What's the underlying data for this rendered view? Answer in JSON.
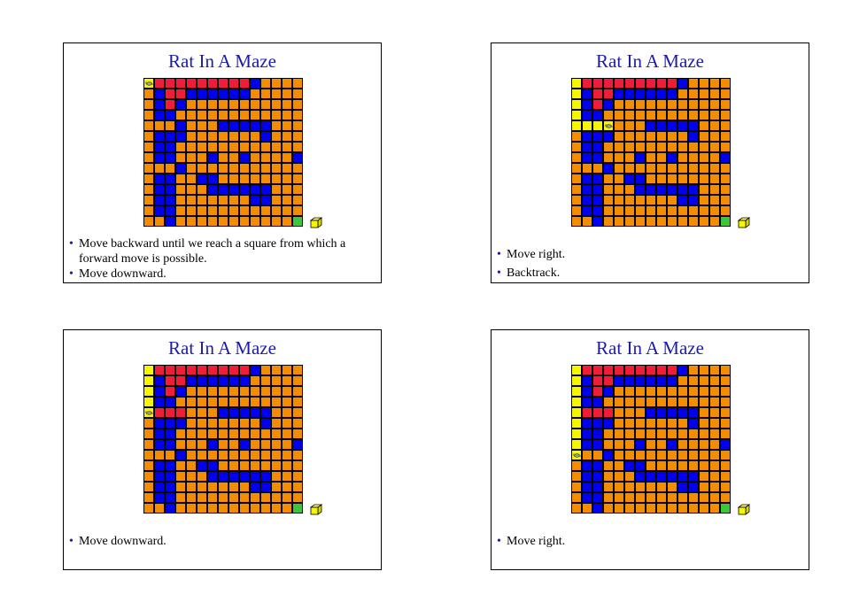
{
  "slides": [
    {
      "title": "Rat In A Maze",
      "bullets": [
        "Move backward until we reach a square from which a forward move is possible.",
        "Move downward."
      ],
      "rat_cell": [
        0,
        0
      ]
    },
    {
      "title": "Rat In A Maze",
      "bullets": [
        "Move right.",
        "Backtrack."
      ],
      "rat_cell": [
        4,
        3
      ]
    },
    {
      "title": "Rat In A Maze",
      "bullets": [
        "Move downward."
      ],
      "rat_cell": [
        4,
        0
      ]
    },
    {
      "title": "Rat In A Maze",
      "bullets": [
        "Move right."
      ],
      "rat_cell": [
        8,
        0
      ]
    }
  ],
  "legend_colors": {
    "open": "#f48c00",
    "wall": "#0000ee",
    "visited_dead": "#f01c38",
    "current_path": "#f6f600",
    "exit": "#3cc63c",
    "title": "#1c1ca8"
  },
  "mazes": [
    [
      [
        3,
        2,
        2,
        2,
        2,
        2,
        2,
        2,
        2,
        2,
        1,
        0,
        0,
        0,
        0
      ],
      [
        0,
        1,
        2,
        2,
        1,
        1,
        1,
        1,
        1,
        1,
        0,
        0,
        0,
        0,
        0
      ],
      [
        0,
        1,
        2,
        1,
        0,
        0,
        0,
        0,
        0,
        0,
        0,
        0,
        0,
        0,
        0
      ],
      [
        0,
        1,
        1,
        0,
        0,
        0,
        0,
        0,
        0,
        0,
        0,
        0,
        0,
        0,
        0
      ],
      [
        0,
        0,
        0,
        1,
        0,
        0,
        0,
        1,
        1,
        1,
        1,
        1,
        0,
        0,
        0
      ],
      [
        0,
        1,
        1,
        1,
        0,
        0,
        0,
        0,
        0,
        0,
        0,
        1,
        0,
        0,
        0
      ],
      [
        0,
        1,
        1,
        0,
        0,
        0,
        0,
        0,
        0,
        0,
        0,
        0,
        0,
        0,
        0
      ],
      [
        0,
        1,
        1,
        0,
        0,
        0,
        1,
        0,
        0,
        1,
        0,
        0,
        0,
        0,
        1
      ],
      [
        0,
        0,
        0,
        1,
        0,
        0,
        0,
        0,
        0,
        0,
        0,
        0,
        0,
        0,
        0
      ],
      [
        0,
        1,
        1,
        0,
        0,
        1,
        1,
        0,
        0,
        0,
        0,
        0,
        0,
        0,
        0
      ],
      [
        0,
        1,
        1,
        0,
        0,
        0,
        1,
        1,
        1,
        1,
        1,
        1,
        0,
        0,
        0
      ],
      [
        0,
        1,
        1,
        0,
        0,
        0,
        0,
        0,
        0,
        0,
        1,
        1,
        0,
        0,
        0
      ],
      [
        0,
        1,
        1,
        0,
        0,
        0,
        0,
        0,
        0,
        0,
        0,
        0,
        0,
        0,
        0
      ],
      [
        0,
        0,
        1,
        0,
        0,
        0,
        0,
        0,
        0,
        0,
        0,
        0,
        0,
        0,
        4
      ]
    ],
    [
      [
        3,
        2,
        2,
        2,
        2,
        2,
        2,
        2,
        2,
        2,
        1,
        0,
        0,
        0,
        0
      ],
      [
        3,
        1,
        2,
        2,
        1,
        1,
        1,
        1,
        1,
        1,
        0,
        0,
        0,
        0,
        0
      ],
      [
        3,
        1,
        2,
        1,
        0,
        0,
        0,
        0,
        0,
        0,
        0,
        0,
        0,
        0,
        0
      ],
      [
        3,
        1,
        1,
        0,
        0,
        0,
        0,
        0,
        0,
        0,
        0,
        0,
        0,
        0,
        0
      ],
      [
        3,
        3,
        3,
        3,
        0,
        0,
        0,
        1,
        1,
        1,
        1,
        1,
        0,
        0,
        0
      ],
      [
        0,
        1,
        1,
        1,
        0,
        0,
        0,
        0,
        0,
        0,
        0,
        1,
        0,
        0,
        0
      ],
      [
        0,
        1,
        1,
        0,
        0,
        0,
        0,
        0,
        0,
        0,
        0,
        0,
        0,
        0,
        0
      ],
      [
        0,
        1,
        1,
        0,
        0,
        0,
        1,
        0,
        0,
        1,
        0,
        0,
        0,
        0,
        1
      ],
      [
        0,
        0,
        0,
        1,
        0,
        0,
        0,
        0,
        0,
        0,
        0,
        0,
        0,
        0,
        0
      ],
      [
        0,
        1,
        1,
        0,
        0,
        1,
        1,
        0,
        0,
        0,
        0,
        0,
        0,
        0,
        0
      ],
      [
        0,
        1,
        1,
        0,
        0,
        0,
        1,
        1,
        1,
        1,
        1,
        1,
        0,
        0,
        0
      ],
      [
        0,
        1,
        1,
        0,
        0,
        0,
        0,
        0,
        0,
        0,
        1,
        1,
        0,
        0,
        0
      ],
      [
        0,
        1,
        1,
        0,
        0,
        0,
        0,
        0,
        0,
        0,
        0,
        0,
        0,
        0,
        0
      ],
      [
        0,
        0,
        1,
        0,
        0,
        0,
        0,
        0,
        0,
        0,
        0,
        0,
        0,
        0,
        4
      ]
    ],
    [
      [
        3,
        2,
        2,
        2,
        2,
        2,
        2,
        2,
        2,
        2,
        1,
        0,
        0,
        0,
        0
      ],
      [
        3,
        1,
        2,
        2,
        1,
        1,
        1,
        1,
        1,
        1,
        0,
        0,
        0,
        0,
        0
      ],
      [
        3,
        1,
        2,
        1,
        0,
        0,
        0,
        0,
        0,
        0,
        0,
        0,
        0,
        0,
        0
      ],
      [
        3,
        1,
        1,
        0,
        0,
        0,
        0,
        0,
        0,
        0,
        0,
        0,
        0,
        0,
        0
      ],
      [
        3,
        2,
        2,
        2,
        0,
        0,
        0,
        1,
        1,
        1,
        1,
        1,
        0,
        0,
        0
      ],
      [
        0,
        1,
        1,
        1,
        0,
        0,
        0,
        0,
        0,
        0,
        0,
        1,
        0,
        0,
        0
      ],
      [
        0,
        1,
        1,
        0,
        0,
        0,
        0,
        0,
        0,
        0,
        0,
        0,
        0,
        0,
        0
      ],
      [
        0,
        1,
        1,
        0,
        0,
        0,
        1,
        0,
        0,
        1,
        0,
        0,
        0,
        0,
        1
      ],
      [
        0,
        0,
        0,
        1,
        0,
        0,
        0,
        0,
        0,
        0,
        0,
        0,
        0,
        0,
        0
      ],
      [
        0,
        1,
        1,
        0,
        0,
        1,
        1,
        0,
        0,
        0,
        0,
        0,
        0,
        0,
        0
      ],
      [
        0,
        1,
        1,
        0,
        0,
        0,
        1,
        1,
        1,
        1,
        1,
        1,
        0,
        0,
        0
      ],
      [
        0,
        1,
        1,
        0,
        0,
        0,
        0,
        0,
        0,
        0,
        1,
        1,
        0,
        0,
        0
      ],
      [
        0,
        1,
        1,
        0,
        0,
        0,
        0,
        0,
        0,
        0,
        0,
        0,
        0,
        0,
        0
      ],
      [
        0,
        0,
        1,
        0,
        0,
        0,
        0,
        0,
        0,
        0,
        0,
        0,
        0,
        0,
        4
      ]
    ],
    [
      [
        3,
        2,
        2,
        2,
        2,
        2,
        2,
        2,
        2,
        2,
        1,
        0,
        0,
        0,
        0
      ],
      [
        3,
        1,
        2,
        2,
        1,
        1,
        1,
        1,
        1,
        1,
        0,
        0,
        0,
        0,
        0
      ],
      [
        3,
        1,
        2,
        1,
        0,
        0,
        0,
        0,
        0,
        0,
        0,
        0,
        0,
        0,
        0
      ],
      [
        3,
        1,
        1,
        0,
        0,
        0,
        0,
        0,
        0,
        0,
        0,
        0,
        0,
        0,
        0
      ],
      [
        3,
        2,
        2,
        2,
        0,
        0,
        0,
        1,
        1,
        1,
        1,
        1,
        0,
        0,
        0
      ],
      [
        3,
        1,
        1,
        1,
        0,
        0,
        0,
        0,
        0,
        0,
        0,
        1,
        0,
        0,
        0
      ],
      [
        3,
        1,
        1,
        0,
        0,
        0,
        0,
        0,
        0,
        0,
        0,
        0,
        0,
        0,
        0
      ],
      [
        3,
        1,
        1,
        0,
        0,
        0,
        1,
        0,
        0,
        1,
        0,
        0,
        0,
        0,
        1
      ],
      [
        3,
        0,
        0,
        1,
        0,
        0,
        0,
        0,
        0,
        0,
        0,
        0,
        0,
        0,
        0
      ],
      [
        0,
        1,
        1,
        0,
        0,
        1,
        1,
        0,
        0,
        0,
        0,
        0,
        0,
        0,
        0
      ],
      [
        0,
        1,
        1,
        0,
        0,
        0,
        1,
        1,
        1,
        1,
        1,
        1,
        0,
        0,
        0
      ],
      [
        0,
        1,
        1,
        0,
        0,
        0,
        0,
        0,
        0,
        0,
        1,
        1,
        0,
        0,
        0
      ],
      [
        0,
        1,
        1,
        0,
        0,
        0,
        0,
        0,
        0,
        0,
        0,
        0,
        0,
        0,
        0
      ],
      [
        0,
        0,
        1,
        0,
        0,
        0,
        0,
        0,
        0,
        0,
        0,
        0,
        0,
        0,
        4
      ]
    ]
  ]
}
